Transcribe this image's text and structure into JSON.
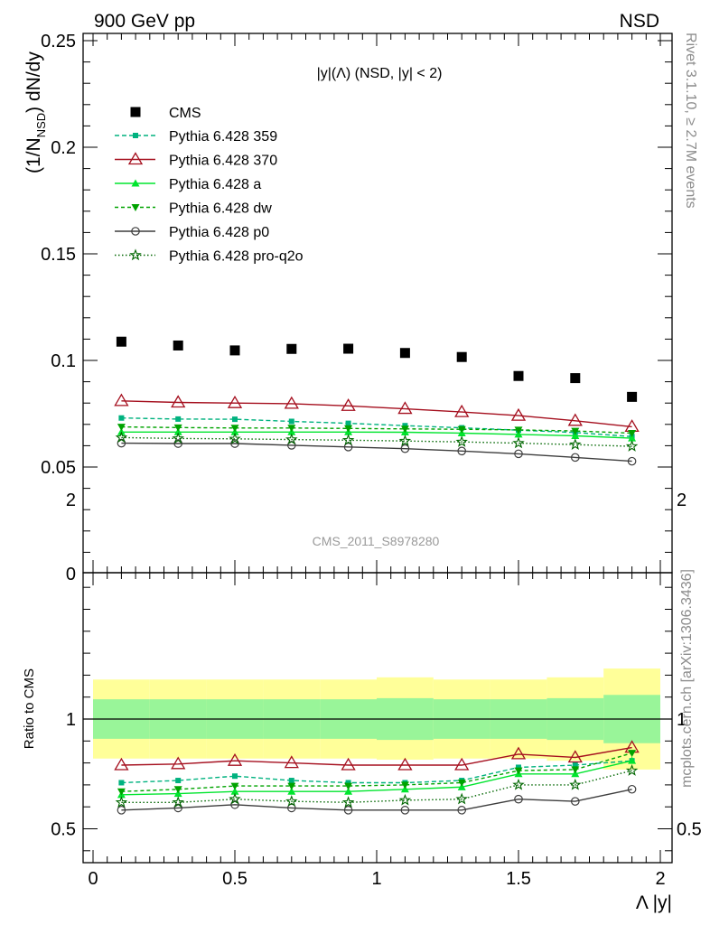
{
  "header": {
    "left": "900 GeV pp",
    "right": "NSD"
  },
  "side_labels": {
    "rivet": "Rivet 3.1.10, ≥ 2.7M events",
    "mcplots": "mcplots.cern.ch [arXiv:1306.3436]"
  },
  "colors": {
    "cms": "#000000",
    "p359": "#00b27f",
    "p370": "#a50f1e",
    "pa": "#00e52e",
    "pdw": "#00a300",
    "pp0": "#3d3d3d",
    "pq2o": "#006600",
    "band_inner": "#99f599",
    "band_outer": "#ffff99"
  },
  "chart_data": {
    "type": "scatter",
    "title": "|y|(Λ) (NSD, |y| < 2)",
    "watermark": "CMS_2011_S8978280",
    "xlabel": "Λ |y|",
    "ylabel_main": "(1/N_NSD) dN/dy",
    "ylabel_ratio": "Ratio to CMS",
    "xlim": [
      0,
      2
    ],
    "ylim_main": [
      0,
      0.255
    ],
    "ylim_ratio": [
      0.35,
      2.3
    ],
    "x_ticks": [
      "0",
      "0.5",
      "1",
      "1.5",
      "2"
    ],
    "y_ticks_main": [
      "0.05",
      "0.1",
      "0.15",
      "0.2",
      "0.25"
    ],
    "y_ticks_main_bottom": "0",
    "y_ticks_ratio": [
      "0.5",
      "1",
      "2"
    ],
    "x": [
      0.1,
      0.3,
      0.5,
      0.7,
      0.9,
      1.1,
      1.3,
      1.5,
      1.7,
      1.9
    ],
    "bin_edges": [
      0,
      0.2,
      0.4,
      0.6,
      0.8,
      1.0,
      1.2,
      1.4,
      1.6,
      1.8,
      2.0
    ],
    "cms": {
      "name": "CMS",
      "values": [
        0.1088,
        0.107,
        0.1047,
        0.1054,
        0.1055,
        0.1035,
        0.1016,
        0.0927,
        0.0917,
        0.0829
      ],
      "ratio_band_inner": [
        [
          0.91,
          1.09
        ],
        [
          0.91,
          1.09
        ],
        [
          0.91,
          1.09
        ],
        [
          0.91,
          1.09
        ],
        [
          0.91,
          1.09
        ],
        [
          0.905,
          1.095
        ],
        [
          0.91,
          1.09
        ],
        [
          0.91,
          1.09
        ],
        [
          0.905,
          1.095
        ],
        [
          0.89,
          1.11
        ]
      ],
      "ratio_band_outer": [
        [
          0.82,
          1.18
        ],
        [
          0.82,
          1.18
        ],
        [
          0.82,
          1.18
        ],
        [
          0.82,
          1.18
        ],
        [
          0.82,
          1.18
        ],
        [
          0.815,
          1.19
        ],
        [
          0.82,
          1.18
        ],
        [
          0.82,
          1.18
        ],
        [
          0.81,
          1.19
        ],
        [
          0.77,
          1.23
        ]
      ]
    },
    "series": [
      {
        "name": "Pythia 6.428 359",
        "key": "p359",
        "marker": "square",
        "dash": "5,3",
        "values": [
          0.073,
          0.0725,
          0.0724,
          0.0714,
          0.0705,
          0.0694,
          0.0684,
          0.0673,
          0.0662,
          0.0643
        ],
        "ratio": [
          0.71,
          0.72,
          0.74,
          0.72,
          0.71,
          0.71,
          0.72,
          0.78,
          0.79,
          0.81
        ]
      },
      {
        "name": "Pythia 6.428 370",
        "key": "p370",
        "marker": "triangle-open",
        "dash": "",
        "values": [
          0.081,
          0.0803,
          0.08,
          0.0797,
          0.0787,
          0.0773,
          0.0758,
          0.0741,
          0.0717,
          0.0689
        ],
        "ratio": [
          0.79,
          0.795,
          0.81,
          0.8,
          0.79,
          0.79,
          0.79,
          0.84,
          0.825,
          0.87
        ]
      },
      {
        "name": "Pythia 6.428 a",
        "key": "pa",
        "marker": "triangle",
        "dash": "",
        "values": [
          0.0664,
          0.0664,
          0.0664,
          0.0664,
          0.0664,
          0.0663,
          0.0659,
          0.0653,
          0.0646,
          0.0635
        ],
        "ratio": [
          0.655,
          0.66,
          0.67,
          0.67,
          0.67,
          0.68,
          0.69,
          0.75,
          0.75,
          0.81
        ]
      },
      {
        "name": "Pythia 6.428 dw",
        "key": "pdw",
        "marker": "triangle-down",
        "dash": "4,3",
        "values": [
          0.0688,
          0.0685,
          0.0683,
          0.0683,
          0.0681,
          0.0679,
          0.0677,
          0.0674,
          0.0669,
          0.0659
        ],
        "ratio": [
          0.67,
          0.68,
          0.695,
          0.695,
          0.695,
          0.7,
          0.71,
          0.765,
          0.77,
          0.845
        ]
      },
      {
        "name": "Pythia 6.428 p0",
        "key": "pp0",
        "marker": "circle-open",
        "dash": "",
        "values": [
          0.0612,
          0.061,
          0.061,
          0.0602,
          0.0594,
          0.0586,
          0.0575,
          0.0562,
          0.0545,
          0.0527
        ],
        "ratio": [
          0.585,
          0.595,
          0.61,
          0.595,
          0.585,
          0.585,
          0.585,
          0.635,
          0.625,
          0.68
        ]
      },
      {
        "name": "Pythia 6.428 pro-q2o",
        "key": "pq2o",
        "marker": "star",
        "dash": "1.5,2.5",
        "values": [
          0.0638,
          0.0634,
          0.0632,
          0.0629,
          0.0626,
          0.0622,
          0.0618,
          0.0612,
          0.0605,
          0.0597
        ],
        "ratio": [
          0.62,
          0.62,
          0.635,
          0.625,
          0.62,
          0.63,
          0.635,
          0.7,
          0.7,
          0.765
        ]
      }
    ]
  }
}
